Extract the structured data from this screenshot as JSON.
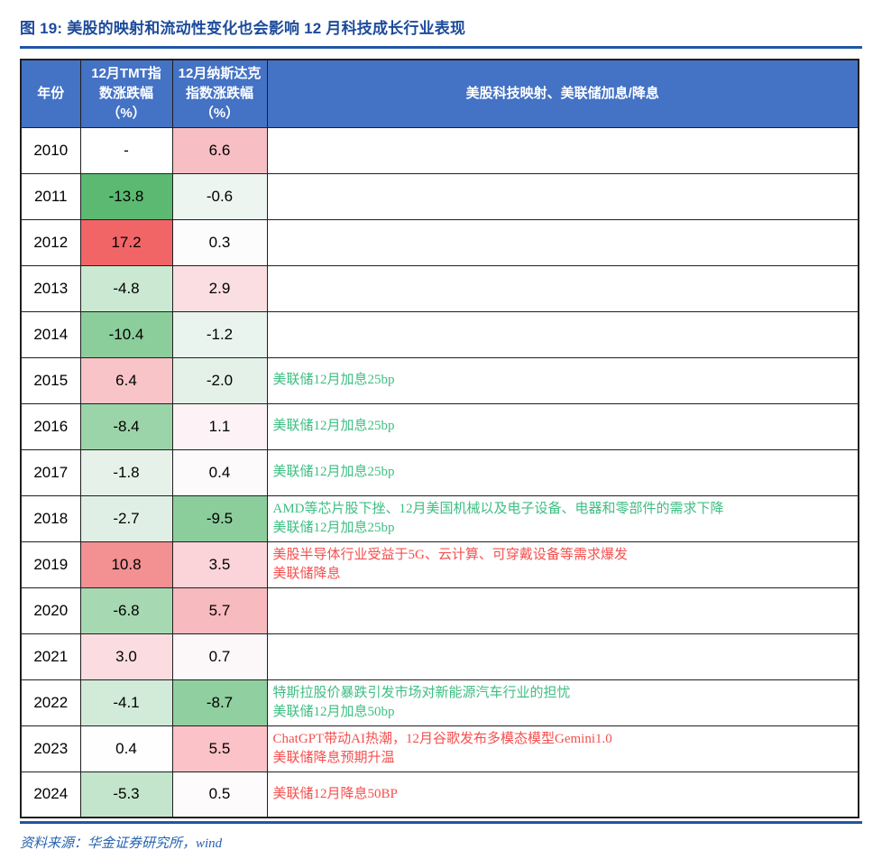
{
  "figure": {
    "title": "图 19: 美股的映射和流动性变化也会影响 12 月科技成长行业表现",
    "source": "资料来源：华金证券研究所，wind"
  },
  "colors": {
    "header_bg": "#4472C4",
    "header_text": "#FFFFFF",
    "title_text": "#1D4B9B",
    "rule": "#2156A5",
    "border": "#1F1F1F",
    "note_green": "#3DBE82",
    "note_red": "#F4504E",
    "source_text": "#2563B0",
    "heat_strong_green": "#5BB971",
    "heat_strong_red": "#F26567"
  },
  "table": {
    "headers": [
      "年份",
      "12月TMT指数涨跌幅（%）",
      "12月纳斯达克指数涨跌幅（%）",
      "美股科技映射、美联储加息/降息"
    ],
    "rows": [
      {
        "year": "2010",
        "tmt": "-",
        "tmt_bg": "#FFFFFF",
        "nasdaq": "6.6",
        "nasdaq_bg": "#F7BFC3",
        "notes": [],
        "note_color": ""
      },
      {
        "year": "2011",
        "tmt": "-13.8",
        "tmt_bg": "#5BB971",
        "nasdaq": "-0.6",
        "nasdaq_bg": "#EDF5F1",
        "notes": [],
        "note_color": ""
      },
      {
        "year": "2012",
        "tmt": "17.2",
        "tmt_bg": "#F26567",
        "nasdaq": "0.3",
        "nasdaq_bg": "#FCFCFD",
        "notes": [],
        "note_color": ""
      },
      {
        "year": "2013",
        "tmt": "-4.8",
        "tmt_bg": "#CBE8D2",
        "nasdaq": "2.9",
        "nasdaq_bg": "#FBDEE2",
        "notes": [],
        "note_color": ""
      },
      {
        "year": "2014",
        "tmt": "-10.4",
        "tmt_bg": "#8BCD9B",
        "nasdaq": "-1.2",
        "nasdaq_bg": "#E9F4EE",
        "notes": [],
        "note_color": ""
      },
      {
        "year": "2015",
        "tmt": "6.4",
        "tmt_bg": "#F8C4C8",
        "nasdaq": "-2.0",
        "nasdaq_bg": "#E4F1E9",
        "notes": [
          "美联储12月加息25bp"
        ],
        "note_color": "green"
      },
      {
        "year": "2016",
        "tmt": "-8.4",
        "tmt_bg": "#9CD4A9",
        "nasdaq": "1.1",
        "nasdaq_bg": "#FDF3F6",
        "notes": [
          "美联储12月加息25bp"
        ],
        "note_color": "green"
      },
      {
        "year": "2017",
        "tmt": "-1.8",
        "tmt_bg": "#E5F1E9",
        "nasdaq": "0.4",
        "nasdaq_bg": "#FDFAFC",
        "notes": [
          "美联储12月加息25bp"
        ],
        "note_color": "green"
      },
      {
        "year": "2018",
        "tmt": "-2.7",
        "tmt_bg": "#E0EFE6",
        "nasdaq": "-9.5",
        "nasdaq_bg": "#8CCD9C",
        "notes": [
          "AMD等芯片股下挫、12月美国机械以及电子设备、电器和零部件的需求下降",
          "美联储12月加息25bp"
        ],
        "note_color": "green"
      },
      {
        "year": "2019",
        "tmt": "10.8",
        "tmt_bg": "#F29092",
        "nasdaq": "3.5",
        "nasdaq_bg": "#FAD4D9",
        "notes": [
          "美股半导体行业受益于5G、云计算、可穿戴设备等需求爆发",
          "美联储降息"
        ],
        "note_color": "red"
      },
      {
        "year": "2020",
        "tmt": "-6.8",
        "tmt_bg": "#A6D8B1",
        "nasdaq": "5.7",
        "nasdaq_bg": "#F7BABF",
        "notes": [],
        "note_color": ""
      },
      {
        "year": "2021",
        "tmt": "3.0",
        "tmt_bg": "#FBDCE1",
        "nasdaq": "0.7",
        "nasdaq_bg": "#FCF8FA",
        "notes": [],
        "note_color": ""
      },
      {
        "year": "2022",
        "tmt": "-4.1",
        "tmt_bg": "#D2EAD8",
        "nasdaq": "-8.7",
        "nasdaq_bg": "#90CF9F",
        "notes": [
          "特斯拉股价暴跌引发市场对新能源汽车行业的担忧",
          "美联储12月加息50bp"
        ],
        "note_color": "green"
      },
      {
        "year": "2023",
        "tmt": "0.4",
        "tmt_bg": "#FEFEFE",
        "nasdaq": "5.5",
        "nasdaq_bg": "#FBC2C7",
        "notes": [
          "ChatGPT带动AI热潮，12月谷歌发布多模态模型Gemini1.0",
          "美联储降息预期升温"
        ],
        "note_color": "red"
      },
      {
        "year": "2024",
        "tmt": "-5.3",
        "tmt_bg": "#C3E5CB",
        "nasdaq": "0.5",
        "nasdaq_bg": "#FDFBFC",
        "notes": [
          "美联储12月降息50BP"
        ],
        "note_color": "red"
      }
    ]
  }
}
